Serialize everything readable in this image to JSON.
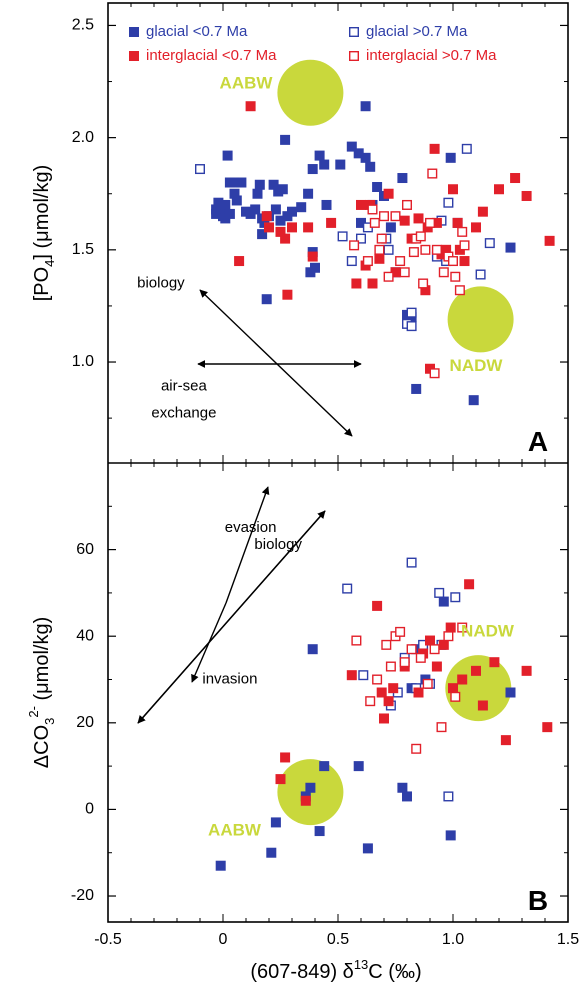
{
  "chart_data": [
    {
      "type": "scatter",
      "panel_label": "A",
      "ylabel_parts": {
        "a": "[PO",
        "sub": "4",
        "b": "] (μmol/kg)"
      },
      "xlim": [
        -0.5,
        1.5
      ],
      "ylim": [
        0.55,
        2.6
      ],
      "yticks": [
        "1.0",
        "1.5",
        "2.0",
        "2.5"
      ],
      "legend_position": "top",
      "series": [
        {
          "name": "glacial <0.7 Ma",
          "color": "#2e3ea8",
          "filled": true,
          "points": [
            [
              -0.03,
              1.68
            ],
            [
              -0.03,
              1.66
            ],
            [
              -0.02,
              1.71
            ],
            [
              -0.01,
              1.69
            ],
            [
              0.0,
              1.65
            ],
            [
              0.01,
              1.7
            ],
            [
              0.01,
              1.64
            ],
            [
              0.02,
              1.92
            ],
            [
              0.03,
              1.8
            ],
            [
              0.03,
              1.66
            ],
            [
              0.05,
              1.75
            ],
            [
              0.05,
              1.8
            ],
            [
              0.06,
              1.72
            ],
            [
              0.08,
              1.8
            ],
            [
              0.1,
              1.67
            ],
            [
              0.12,
              1.66
            ],
            [
              0.14,
              1.68
            ],
            [
              0.15,
              1.75
            ],
            [
              0.16,
              1.79
            ],
            [
              0.17,
              1.57
            ],
            [
              0.17,
              1.64
            ],
            [
              0.18,
              1.62
            ],
            [
              0.19,
              1.28
            ],
            [
              0.2,
              1.65
            ],
            [
              0.22,
              1.79
            ],
            [
              0.23,
              1.68
            ],
            [
              0.24,
              1.76
            ],
            [
              0.25,
              1.63
            ],
            [
              0.26,
              1.77
            ],
            [
              0.27,
              1.99
            ],
            [
              0.28,
              1.65
            ],
            [
              0.3,
              1.67
            ],
            [
              0.34,
              1.69
            ],
            [
              0.37,
              1.75
            ],
            [
              0.38,
              1.4
            ],
            [
              0.39,
              1.49
            ],
            [
              0.39,
              1.86
            ],
            [
              0.4,
              1.42
            ],
            [
              0.42,
              1.92
            ],
            [
              0.44,
              1.88
            ],
            [
              0.45,
              1.7
            ],
            [
              0.51,
              1.88
            ],
            [
              0.56,
              1.96
            ],
            [
              0.59,
              1.93
            ],
            [
              0.6,
              1.62
            ],
            [
              0.62,
              2.14
            ],
            [
              0.62,
              1.91
            ],
            [
              0.64,
              1.87
            ],
            [
              0.65,
              1.7
            ],
            [
              0.67,
              1.78
            ],
            [
              0.7,
              1.74
            ],
            [
              0.73,
              1.6
            ],
            [
              0.78,
              1.82
            ],
            [
              0.8,
              1.21
            ],
            [
              0.81,
              1.19
            ],
            [
              0.82,
              1.2
            ],
            [
              0.84,
              0.88
            ],
            [
              0.99,
              1.91
            ],
            [
              1.09,
              0.83
            ],
            [
              1.25,
              1.51
            ]
          ]
        },
        {
          "name": "glacial >0.7 Ma",
          "color": "#2e3ea8",
          "filled": false,
          "points": [
            [
              -0.1,
              1.86
            ],
            [
              0.52,
              1.56
            ],
            [
              0.56,
              1.45
            ],
            [
              0.6,
              1.55
            ],
            [
              0.63,
              1.6
            ],
            [
              0.71,
              1.55
            ],
            [
              0.72,
              1.5
            ],
            [
              0.75,
              1.4
            ],
            [
              0.8,
              1.17
            ],
            [
              0.82,
              1.22
            ],
            [
              0.82,
              1.16
            ],
            [
              0.93,
              1.47
            ],
            [
              0.95,
              1.63
            ],
            [
              0.97,
              1.45
            ],
            [
              0.98,
              1.71
            ],
            [
              1.02,
              1.62
            ],
            [
              1.06,
              1.95
            ],
            [
              1.12,
              1.39
            ],
            [
              1.16,
              1.53
            ]
          ]
        },
        {
          "name": "interglacial <0.7 Ma",
          "color": "#e2202a",
          "filled": true,
          "points": [
            [
              0.07,
              1.45
            ],
            [
              0.12,
              2.14
            ],
            [
              0.19,
              1.65
            ],
            [
              0.2,
              1.6
            ],
            [
              0.25,
              1.58
            ],
            [
              0.27,
              1.55
            ],
            [
              0.28,
              1.3
            ],
            [
              0.3,
              1.6
            ],
            [
              0.37,
              1.6
            ],
            [
              0.39,
              1.47
            ],
            [
              0.47,
              1.62
            ],
            [
              0.58,
              1.35
            ],
            [
              0.6,
              1.7
            ],
            [
              0.62,
              1.43
            ],
            [
              0.64,
              1.7
            ],
            [
              0.65,
              1.35
            ],
            [
              0.68,
              1.46
            ],
            [
              0.72,
              1.75
            ],
            [
              0.75,
              1.4
            ],
            [
              0.79,
              1.63
            ],
            [
              0.82,
              1.55
            ],
            [
              0.85,
              1.64
            ],
            [
              0.88,
              1.32
            ],
            [
              0.89,
              1.6
            ],
            [
              0.9,
              0.97
            ],
            [
              0.92,
              1.95
            ],
            [
              0.93,
              1.62
            ],
            [
              0.95,
              1.48
            ],
            [
              0.97,
              1.5
            ],
            [
              1.0,
              1.77
            ],
            [
              1.02,
              1.62
            ],
            [
              1.03,
              1.5
            ],
            [
              1.05,
              1.45
            ],
            [
              1.1,
              1.6
            ],
            [
              1.13,
              1.67
            ],
            [
              1.2,
              1.77
            ],
            [
              1.27,
              1.82
            ],
            [
              1.32,
              1.74
            ],
            [
              1.42,
              1.54
            ]
          ]
        },
        {
          "name": "interglacial >0.7 Ma",
          "color": "#e2202a",
          "filled": false,
          "points": [
            [
              0.57,
              1.52
            ],
            [
              0.63,
              1.45
            ],
            [
              0.65,
              1.68
            ],
            [
              0.66,
              1.62
            ],
            [
              0.68,
              1.5
            ],
            [
              0.69,
              1.55
            ],
            [
              0.7,
              1.65
            ],
            [
              0.72,
              1.38
            ],
            [
              0.75,
              1.65
            ],
            [
              0.77,
              1.45
            ],
            [
              0.79,
              1.4
            ],
            [
              0.8,
              1.7
            ],
            [
              0.83,
              1.49
            ],
            [
              0.84,
              1.55
            ],
            [
              0.86,
              1.56
            ],
            [
              0.87,
              1.35
            ],
            [
              0.88,
              1.5
            ],
            [
              0.9,
              1.62
            ],
            [
              0.91,
              1.84
            ],
            [
              0.93,
              1.5
            ],
            [
              0.96,
              1.4
            ],
            [
              0.98,
              1.47
            ],
            [
              1.0,
              1.45
            ],
            [
              1.01,
              1.38
            ],
            [
              1.03,
              1.32
            ],
            [
              1.04,
              1.58
            ],
            [
              1.05,
              1.52
            ],
            [
              0.92,
              0.95
            ]
          ]
        }
      ],
      "water_masses": [
        {
          "label": "AABW",
          "x": 0.38,
          "y": 2.2,
          "label_x": 0.1,
          "label_y": 2.24
        },
        {
          "label": "NADW",
          "x": 1.12,
          "y": 1.19,
          "label_x": 1.1,
          "label_y": 0.98
        }
      ],
      "annotations": [
        {
          "text": "biology",
          "x": -0.27,
          "y": 1.35
        },
        {
          "text": "air-sea",
          "x": -0.17,
          "y": 0.89
        },
        {
          "text": "exchange",
          "x": -0.17,
          "y": 0.77
        }
      ]
    },
    {
      "type": "scatter",
      "panel_label": "B",
      "ylabel_parts": {
        "a": "ΔCO",
        "sub": "3",
        "sup": "2-",
        "b": " (μmol/kg)"
      },
      "xlabel_parts": {
        "a": "(607-849) δ",
        "sup": "13",
        "b": "C (‰)"
      },
      "xlim": [
        -0.5,
        1.5
      ],
      "ylim": [
        -26,
        80
      ],
      "xticks": [
        "-0.5",
        "0",
        "0.5",
        "1.0",
        "1.5"
      ],
      "yticks": [
        "-20",
        "0",
        "20",
        "40",
        "60"
      ],
      "series": [
        {
          "name": "glacial <0.7 Ma",
          "color": "#2e3ea8",
          "filled": true,
          "points": [
            [
              -0.01,
              -13
            ],
            [
              0.21,
              -10
            ],
            [
              0.23,
              -3
            ],
            [
              0.36,
              3
            ],
            [
              0.38,
              5
            ],
            [
              0.39,
              37
            ],
            [
              0.42,
              -5
            ],
            [
              0.44,
              10
            ],
            [
              0.59,
              10
            ],
            [
              0.63,
              -9
            ],
            [
              0.78,
              5
            ],
            [
              0.8,
              3
            ],
            [
              0.82,
              28
            ],
            [
              0.99,
              -6
            ],
            [
              0.84,
              37
            ],
            [
              0.88,
              30
            ],
            [
              0.96,
              48
            ],
            [
              1.25,
              27
            ]
          ]
        },
        {
          "name": "glacial >0.7 Ma",
          "color": "#2e3ea8",
          "filled": false,
          "points": [
            [
              0.54,
              51
            ],
            [
              0.61,
              31
            ],
            [
              0.73,
              24
            ],
            [
              0.76,
              27
            ],
            [
              0.79,
              35
            ],
            [
              0.82,
              57
            ],
            [
              0.84,
              28
            ],
            [
              0.87,
              38
            ],
            [
              0.9,
              29
            ],
            [
              0.94,
              50
            ],
            [
              0.95,
              38
            ],
            [
              0.98,
              3
            ],
            [
              1.01,
              49
            ]
          ]
        },
        {
          "name": "interglacial <0.7 Ma",
          "color": "#e2202a",
          "filled": true,
          "points": [
            [
              0.25,
              7
            ],
            [
              0.27,
              12
            ],
            [
              0.36,
              2
            ],
            [
              0.56,
              31
            ],
            [
              0.67,
              47
            ],
            [
              0.69,
              27
            ],
            [
              0.7,
              21
            ],
            [
              0.72,
              25
            ],
            [
              0.74,
              28
            ],
            [
              0.79,
              33
            ],
            [
              0.85,
              27
            ],
            [
              0.87,
              36
            ],
            [
              0.9,
              39
            ],
            [
              0.93,
              33
            ],
            [
              0.96,
              38
            ],
            [
              0.99,
              42
            ],
            [
              1.0,
              28
            ],
            [
              1.04,
              30
            ],
            [
              1.07,
              52
            ],
            [
              1.1,
              32
            ],
            [
              1.13,
              24
            ],
            [
              1.18,
              34
            ],
            [
              1.23,
              16
            ],
            [
              1.32,
              32
            ],
            [
              1.41,
              19
            ]
          ]
        },
        {
          "name": "interglacial >0.7 Ma",
          "color": "#e2202a",
          "filled": false,
          "points": [
            [
              0.58,
              39
            ],
            [
              0.64,
              25
            ],
            [
              0.67,
              30
            ],
            [
              0.71,
              38
            ],
            [
              0.73,
              33
            ],
            [
              0.75,
              40
            ],
            [
              0.77,
              41
            ],
            [
              0.79,
              34
            ],
            [
              0.82,
              37
            ],
            [
              0.84,
              14
            ],
            [
              0.86,
              35
            ],
            [
              0.89,
              29
            ],
            [
              0.92,
              37
            ],
            [
              0.95,
              19
            ],
            [
              0.98,
              40
            ],
            [
              1.01,
              26
            ],
            [
              1.04,
              42
            ]
          ]
        }
      ],
      "water_masses": [
        {
          "label": "AABW",
          "x": 0.38,
          "y": 4,
          "label_x": 0.05,
          "label_y": -5
        },
        {
          "label": "NADW",
          "x": 1.11,
          "y": 28,
          "label_x": 1.15,
          "label_y": 41
        }
      ],
      "annotations": [
        {
          "text": "evasion",
          "x": 0.12,
          "y": 65
        },
        {
          "text": "biology",
          "x": 0.24,
          "y": 61
        },
        {
          "text": "invasion",
          "x": 0.03,
          "y": 30
        }
      ]
    }
  ]
}
